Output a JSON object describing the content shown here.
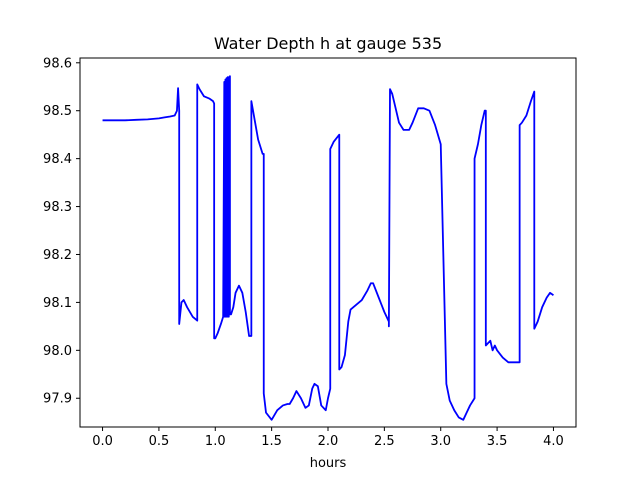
{
  "chart_data": {
    "type": "line",
    "title": "Water Depth h at gauge 535",
    "xlabel": "hours",
    "ylabel": "",
    "xlim": [
      -0.2,
      4.2
    ],
    "ylim": [
      97.84,
      98.61
    ],
    "xticks": [
      0.0,
      0.5,
      1.0,
      1.5,
      2.0,
      2.5,
      3.0,
      3.5,
      4.0
    ],
    "xtick_labels": [
      "0.0",
      "0.5",
      "1.0",
      "1.5",
      "2.0",
      "2.5",
      "3.0",
      "3.5",
      "4.0"
    ],
    "yticks": [
      97.9,
      98.0,
      98.1,
      98.2,
      98.3,
      98.4,
      98.5,
      98.6
    ],
    "ytick_labels": [
      "97.9",
      "98.0",
      "98.1",
      "98.2",
      "98.3",
      "98.4",
      "98.5",
      "98.6"
    ],
    "grid": false,
    "line_color": "#0000ff",
    "series": [
      {
        "x": [
          0.0,
          0.1,
          0.2,
          0.3,
          0.4,
          0.5,
          0.55,
          0.6,
          0.64,
          0.66,
          0.67,
          0.68,
          0.68,
          0.7,
          0.72,
          0.75,
          0.8,
          0.84,
          0.84,
          0.86,
          0.9,
          0.95,
          0.98,
          0.99,
          0.99,
          1.0,
          1.02,
          1.05,
          1.07,
          1.08,
          1.08,
          1.09,
          1.09,
          1.1,
          1.1,
          1.11,
          1.11,
          1.12,
          1.12,
          1.13,
          1.13,
          1.14,
          1.16,
          1.18,
          1.21,
          1.24,
          1.27,
          1.3,
          1.32,
          1.32,
          1.35,
          1.38,
          1.42,
          1.43,
          1.43,
          1.45,
          1.5,
          1.55,
          1.6,
          1.64,
          1.66,
          1.69,
          1.72,
          1.76,
          1.8,
          1.83,
          1.86,
          1.88,
          1.91,
          1.94,
          1.98,
          2.0,
          2.02,
          2.02,
          2.05,
          2.1,
          2.1,
          2.12,
          2.15,
          2.18,
          2.2,
          2.25,
          2.3,
          2.35,
          2.38,
          2.4,
          2.45,
          2.5,
          2.54,
          2.54,
          2.55,
          2.57,
          2.6,
          2.63,
          2.67,
          2.72,
          2.75,
          2.8,
          2.85,
          2.9,
          2.95,
          3.0,
          3.05,
          3.05,
          3.08,
          3.12,
          3.16,
          3.2,
          3.23,
          3.26,
          3.3,
          3.3,
          3.33,
          3.36,
          3.39,
          3.4,
          3.4,
          3.42,
          3.44,
          3.46,
          3.48,
          3.5,
          3.55,
          3.6,
          3.65,
          3.7,
          3.7,
          3.72,
          3.76,
          3.8,
          3.83,
          3.83,
          3.86,
          3.9,
          3.94,
          3.97,
          4.0
        ],
        "y": [
          98.48,
          98.48,
          98.48,
          98.481,
          98.482,
          98.484,
          98.486,
          98.488,
          98.49,
          98.5,
          98.547,
          98.5,
          98.055,
          98.1,
          98.105,
          98.09,
          98.07,
          98.062,
          98.555,
          98.545,
          98.53,
          98.525,
          98.52,
          98.515,
          98.025,
          98.025,
          98.035,
          98.055,
          98.07,
          98.56,
          98.07,
          98.565,
          98.07,
          98.568,
          98.07,
          98.57,
          98.07,
          98.57,
          98.07,
          98.572,
          98.075,
          98.075,
          98.09,
          98.12,
          98.135,
          98.12,
          98.08,
          98.03,
          98.03,
          98.52,
          98.48,
          98.44,
          98.41,
          98.41,
          97.91,
          97.87,
          97.855,
          97.875,
          97.885,
          97.888,
          97.888,
          97.9,
          97.915,
          97.9,
          97.88,
          97.885,
          97.92,
          97.93,
          97.925,
          97.885,
          97.875,
          97.9,
          97.92,
          98.42,
          98.435,
          98.45,
          97.96,
          97.965,
          97.99,
          98.06,
          98.085,
          98.095,
          98.105,
          98.125,
          98.14,
          98.14,
          98.11,
          98.08,
          98.06,
          98.05,
          98.545,
          98.535,
          98.505,
          98.475,
          98.46,
          98.46,
          98.475,
          98.505,
          98.505,
          98.5,
          98.47,
          98.43,
          97.93,
          97.93,
          97.895,
          97.875,
          97.86,
          97.855,
          97.87,
          97.885,
          97.9,
          98.4,
          98.43,
          98.47,
          98.5,
          98.5,
          98.01,
          98.015,
          98.02,
          98.0,
          98.01,
          98.0,
          97.985,
          97.975,
          97.975,
          97.975,
          98.47,
          98.475,
          98.49,
          98.52,
          98.54,
          98.045,
          98.06,
          98.09,
          98.11,
          98.12,
          98.115
        ]
      }
    ]
  }
}
